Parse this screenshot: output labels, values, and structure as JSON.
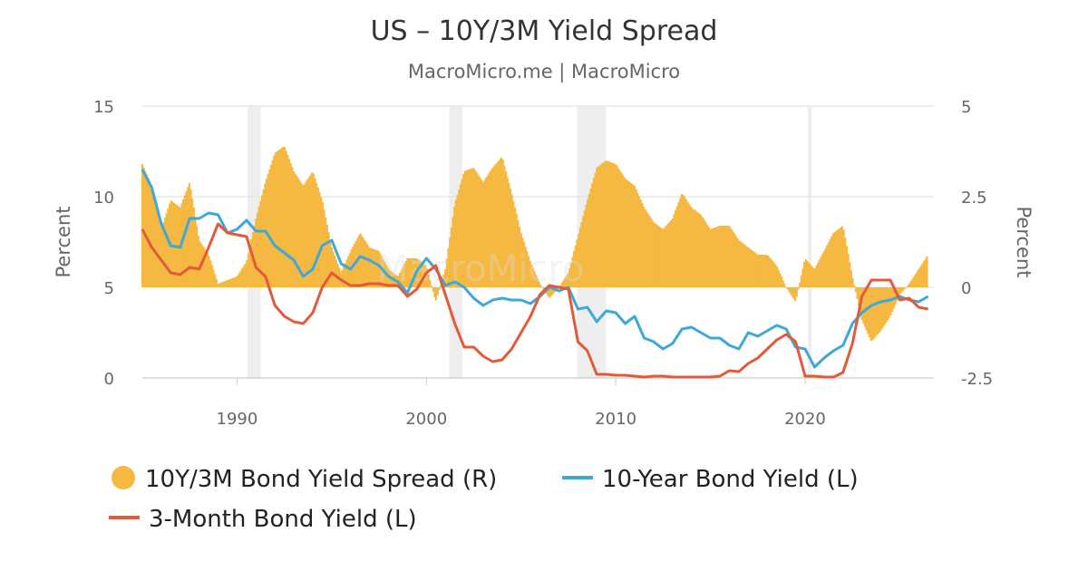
{
  "chart_data": {
    "type": "combo",
    "title": "US – 10Y/3M Yield Spread",
    "subtitle": "MacroMicro.me | MacroMicro",
    "watermark": "MacroMicro",
    "left_axis": {
      "label": "Percent",
      "range": [
        0,
        15
      ],
      "ticks": [
        0,
        5,
        10,
        15
      ],
      "tick_labels": [
        "0",
        "5",
        "10",
        "15"
      ]
    },
    "right_axis": {
      "label": "Percent",
      "range": [
        -2.5,
        5
      ],
      "ticks": [
        -2.5,
        0,
        2.5,
        5
      ],
      "tick_labels": [
        "-2.5",
        "0",
        "2.5",
        "5"
      ]
    },
    "x_axis": {
      "range": [
        1985.0,
        2026.8
      ],
      "ticks": [
        1990,
        2000,
        2010,
        2020
      ],
      "tick_labels": [
        "1990",
        "2000",
        "2010",
        "2020"
      ]
    },
    "grid": true,
    "legend_position": "bottom-left",
    "recessions": [
      [
        1990.55,
        1991.25
      ],
      [
        2001.2,
        2001.9
      ],
      [
        2007.95,
        2009.5
      ],
      [
        2020.15,
        2020.35
      ]
    ],
    "series": [
      {
        "name": "10Y/3M Bond Yield Spread (R)",
        "type": "column",
        "axis": "right",
        "color": "#F5B942",
        "x": [
          1985.0,
          1985.5,
          1986.0,
          1986.5,
          1987.0,
          1987.5,
          1988.0,
          1988.5,
          1989.0,
          1989.5,
          1990.0,
          1990.5,
          1991.0,
          1991.5,
          1992.0,
          1992.5,
          1993.0,
          1993.5,
          1994.0,
          1994.5,
          1995.0,
          1995.5,
          1996.0,
          1996.5,
          1997.0,
          1997.5,
          1998.0,
          1998.5,
          1999.0,
          1999.5,
          2000.0,
          2000.5,
          2001.0,
          2001.5,
          2002.0,
          2002.5,
          2003.0,
          2003.5,
          2004.0,
          2004.5,
          2005.0,
          2005.5,
          2006.0,
          2006.5,
          2007.0,
          2007.5,
          2008.0,
          2008.5,
          2009.0,
          2009.5,
          2010.0,
          2010.5,
          2011.0,
          2011.5,
          2012.0,
          2012.5,
          2013.0,
          2013.5,
          2014.0,
          2014.5,
          2015.0,
          2015.5,
          2016.0,
          2016.5,
          2017.0,
          2017.5,
          2018.0,
          2018.5,
          2019.0,
          2019.5,
          2020.0,
          2020.5,
          2021.0,
          2021.5,
          2022.0,
          2022.5,
          2023.0,
          2023.5,
          2024.0,
          2024.5,
          2025.0,
          2025.5,
          2026.0,
          2026.5
        ],
        "values": [
          3.4,
          2.8,
          1.6,
          2.4,
          2.2,
          2.9,
          1.3,
          0.9,
          0.1,
          0.2,
          0.3,
          0.7,
          1.9,
          2.9,
          3.7,
          3.9,
          3.2,
          2.8,
          3.2,
          2.4,
          1.1,
          0.4,
          1.0,
          1.5,
          1.1,
          1.0,
          0.5,
          0.3,
          0.8,
          0.8,
          0.6,
          -0.4,
          0.5,
          2.3,
          3.2,
          3.3,
          2.9,
          3.3,
          3.6,
          2.6,
          1.5,
          0.7,
          0.1,
          -0.3,
          0.0,
          0.4,
          1.4,
          2.4,
          3.3,
          3.5,
          3.4,
          3.0,
          2.8,
          2.2,
          1.8,
          1.6,
          1.9,
          2.6,
          2.2,
          2.0,
          1.6,
          1.7,
          1.7,
          1.3,
          1.1,
          0.9,
          0.9,
          0.6,
          0.0,
          -0.4,
          0.8,
          0.5,
          1.0,
          1.5,
          1.7,
          0.3,
          -0.9,
          -1.5,
          -1.2,
          -0.8,
          -0.2,
          0.1,
          0.5,
          0.9
        ]
      },
      {
        "name": "10-Year Bond Yield (L)",
        "type": "line",
        "axis": "left",
        "color": "#3EA8D8",
        "x": [
          1985.0,
          1985.5,
          1986.0,
          1986.5,
          1987.0,
          1987.5,
          1988.0,
          1988.5,
          1989.0,
          1989.5,
          1990.0,
          1990.5,
          1991.0,
          1991.5,
          1992.0,
          1992.5,
          1993.0,
          1993.5,
          1994.0,
          1994.5,
          1995.0,
          1995.5,
          1996.0,
          1996.5,
          1997.0,
          1997.5,
          1998.0,
          1998.5,
          1999.0,
          1999.5,
          2000.0,
          2000.5,
          2001.0,
          2001.5,
          2002.0,
          2002.5,
          2003.0,
          2003.5,
          2004.0,
          2004.5,
          2005.0,
          2005.5,
          2006.0,
          2006.5,
          2007.0,
          2007.5,
          2008.0,
          2008.5,
          2009.0,
          2009.5,
          2010.0,
          2010.5,
          2011.0,
          2011.5,
          2012.0,
          2012.5,
          2013.0,
          2013.5,
          2014.0,
          2014.5,
          2015.0,
          2015.5,
          2016.0,
          2016.5,
          2017.0,
          2017.5,
          2018.0,
          2018.5,
          2019.0,
          2019.5,
          2020.0,
          2020.5,
          2021.0,
          2021.5,
          2022.0,
          2022.5,
          2023.0,
          2023.5,
          2024.0,
          2024.5,
          2025.0,
          2025.5,
          2026.0,
          2026.5
        ],
        "values": [
          11.5,
          10.5,
          8.5,
          7.3,
          7.2,
          8.8,
          8.8,
          9.1,
          9.0,
          8.0,
          8.2,
          8.7,
          8.1,
          8.1,
          7.3,
          6.9,
          6.5,
          5.6,
          6.0,
          7.3,
          7.6,
          6.3,
          6.0,
          6.7,
          6.5,
          6.2,
          5.6,
          5.3,
          4.7,
          5.9,
          6.6,
          6.0,
          5.1,
          5.3,
          5.0,
          4.4,
          4.0,
          4.3,
          4.4,
          4.3,
          4.3,
          4.1,
          4.5,
          5.0,
          4.8,
          5.0,
          3.8,
          3.9,
          3.1,
          3.7,
          3.6,
          3.0,
          3.4,
          2.2,
          2.0,
          1.6,
          1.9,
          2.7,
          2.8,
          2.5,
          2.2,
          2.2,
          1.8,
          1.6,
          2.5,
          2.3,
          2.6,
          2.9,
          2.7,
          1.7,
          1.6,
          0.6,
          1.1,
          1.5,
          1.8,
          3.0,
          3.6,
          4.0,
          4.2,
          4.3,
          4.5,
          4.3,
          4.2,
          4.5
        ]
      },
      {
        "name": "3-Month Bond Yield (L)",
        "type": "line",
        "axis": "left",
        "color": "#E35A3B",
        "x": [
          1985.0,
          1985.5,
          1986.0,
          1986.5,
          1987.0,
          1987.5,
          1988.0,
          1988.5,
          1989.0,
          1989.5,
          1990.0,
          1990.5,
          1991.0,
          1991.5,
          1992.0,
          1992.5,
          1993.0,
          1993.5,
          1994.0,
          1994.5,
          1995.0,
          1995.5,
          1996.0,
          1996.5,
          1997.0,
          1997.5,
          1998.0,
          1998.5,
          1999.0,
          1999.5,
          2000.0,
          2000.5,
          2001.0,
          2001.5,
          2002.0,
          2002.5,
          2003.0,
          2003.5,
          2004.0,
          2004.5,
          2005.0,
          2005.5,
          2006.0,
          2006.5,
          2007.0,
          2007.5,
          2008.0,
          2008.5,
          2009.0,
          2009.5,
          2010.0,
          2010.5,
          2011.0,
          2011.5,
          2012.0,
          2012.5,
          2013.0,
          2013.5,
          2014.0,
          2014.5,
          2015.0,
          2015.5,
          2016.0,
          2016.5,
          2017.0,
          2017.5,
          2018.0,
          2018.5,
          2019.0,
          2019.5,
          2020.0,
          2020.5,
          2021.0,
          2021.5,
          2022.0,
          2022.5,
          2023.0,
          2023.5,
          2024.0,
          2024.5,
          2025.0,
          2025.5,
          2026.0,
          2026.5
        ],
        "values": [
          8.2,
          7.2,
          6.5,
          5.8,
          5.7,
          6.1,
          6.0,
          7.2,
          8.5,
          8.0,
          7.9,
          7.8,
          6.1,
          5.6,
          4.0,
          3.4,
          3.1,
          3.0,
          3.6,
          5.0,
          5.8,
          5.4,
          5.1,
          5.1,
          5.2,
          5.2,
          5.1,
          5.1,
          4.5,
          4.9,
          5.8,
          6.2,
          4.6,
          3.0,
          1.7,
          1.7,
          1.2,
          0.9,
          1.0,
          1.6,
          2.5,
          3.4,
          4.6,
          5.1,
          5.0,
          4.9,
          2.0,
          1.5,
          0.2,
          0.2,
          0.15,
          0.15,
          0.1,
          0.05,
          0.1,
          0.1,
          0.05,
          0.05,
          0.05,
          0.05,
          0.05,
          0.1,
          0.4,
          0.35,
          0.8,
          1.1,
          1.6,
          2.1,
          2.4,
          2.0,
          0.1,
          0.1,
          0.05,
          0.05,
          0.3,
          1.9,
          4.5,
          5.4,
          5.4,
          5.4,
          4.3,
          4.4,
          3.9,
          3.8
        ]
      }
    ]
  }
}
